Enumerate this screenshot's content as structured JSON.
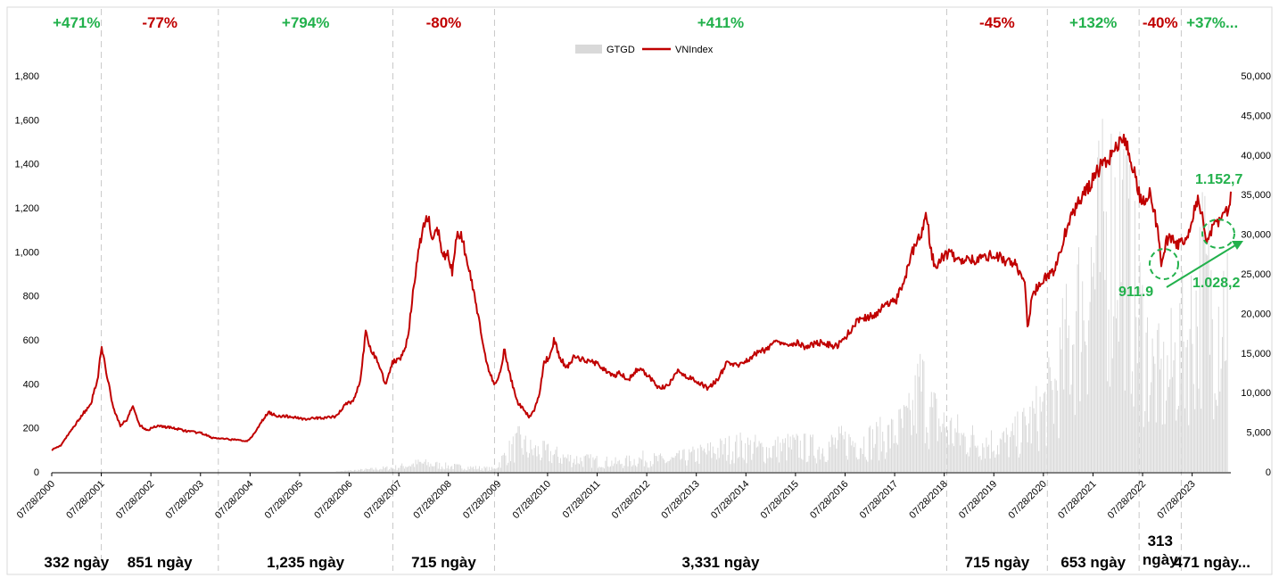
{
  "chart_data": {
    "type": "line",
    "series": [
      {
        "name": "GTGD",
        "kind": "bar",
        "color": "#d9d9d9",
        "axis": "right"
      },
      {
        "name": "VNIndex",
        "kind": "line",
        "color": "#c00000",
        "axis": "left"
      }
    ],
    "legend_position": "top-center",
    "grid": false,
    "left_axis": {
      "ticks": [
        "0",
        "200",
        "400",
        "600",
        "800",
        "1,000",
        "1,200",
        "1,400",
        "1,600",
        "1,800"
      ],
      "values": [
        0,
        200,
        400,
        600,
        800,
        1000,
        1200,
        1400,
        1600,
        1800
      ],
      "range": [
        0,
        1800
      ]
    },
    "right_axis": {
      "ticks": [
        "0",
        "5,000",
        "10,000",
        "15,000",
        "20,000",
        "25,000",
        "30,000",
        "35,000",
        "40,000",
        "45,000",
        "50,000"
      ],
      "values": [
        0,
        5000,
        10000,
        15000,
        20000,
        25000,
        30000,
        35000,
        40000,
        45000,
        50000
      ],
      "range": [
        0,
        50000
      ]
    },
    "x_range": [
      2000.57,
      2024.35
    ],
    "x_ticks": [
      {
        "label": "07/28/2000",
        "year": 2000.57
      },
      {
        "label": "07/28/2001",
        "year": 2001.57
      },
      {
        "label": "07/28/2002",
        "year": 2002.57
      },
      {
        "label": "07/28/2003",
        "year": 2003.57
      },
      {
        "label": "07/28/2004",
        "year": 2004.57
      },
      {
        "label": "07/28/2005",
        "year": 2005.57
      },
      {
        "label": "07/28/2006",
        "year": 2006.57
      },
      {
        "label": "07/28/2007",
        "year": 2007.57
      },
      {
        "label": "07/28/2008",
        "year": 2008.57
      },
      {
        "label": "07/28/2009",
        "year": 2009.57
      },
      {
        "label": "07/28/2010",
        "year": 2010.57
      },
      {
        "label": "07/28/2011",
        "year": 2011.57
      },
      {
        "label": "07/28/2012",
        "year": 2012.57
      },
      {
        "label": "07/28/2013",
        "year": 2013.57
      },
      {
        "label": "07/28/2014",
        "year": 2014.57
      },
      {
        "label": "07/28/2015",
        "year": 2015.57
      },
      {
        "label": "07/28/2016",
        "year": 2016.57
      },
      {
        "label": "07/28/2017",
        "year": 2017.57
      },
      {
        "label": "07/28/2018",
        "year": 2018.57
      },
      {
        "label": "07/28/2019",
        "year": 2019.57
      },
      {
        "label": "07/28/2020",
        "year": 2020.57
      },
      {
        "label": "07/28/2021",
        "year": 2021.57
      },
      {
        "label": "07/28/2022",
        "year": 2022.57
      },
      {
        "label": "07/28/2023",
        "year": 2023.57
      }
    ],
    "vnindex": [
      [
        2000.57,
        100
      ],
      [
        2000.75,
        120
      ],
      [
        2001.0,
        200
      ],
      [
        2001.2,
        265
      ],
      [
        2001.35,
        300
      ],
      [
        2001.5,
        430
      ],
      [
        2001.57,
        570
      ],
      [
        2001.65,
        480
      ],
      [
        2001.8,
        300
      ],
      [
        2001.95,
        210
      ],
      [
        2002.1,
        240
      ],
      [
        2002.2,
        300
      ],
      [
        2002.35,
        210
      ],
      [
        2002.5,
        190
      ],
      [
        2002.7,
        210
      ],
      [
        2003.0,
        200
      ],
      [
        2003.3,
        185
      ],
      [
        2003.6,
        175
      ],
      [
        2003.8,
        155
      ],
      [
        2004.0,
        150
      ],
      [
        2004.3,
        145
      ],
      [
        2004.5,
        140
      ],
      [
        2004.65,
        170
      ],
      [
        2004.85,
        245
      ],
      [
        2004.95,
        270
      ],
      [
        2005.1,
        255
      ],
      [
        2005.4,
        250
      ],
      [
        2005.7,
        240
      ],
      [
        2006.0,
        245
      ],
      [
        2006.3,
        250
      ],
      [
        2006.5,
        310
      ],
      [
        2006.65,
        320
      ],
      [
        2006.8,
        420
      ],
      [
        2006.9,
        630
      ],
      [
        2007.0,
        560
      ],
      [
        2007.15,
        500
      ],
      [
        2007.3,
        400
      ],
      [
        2007.45,
        500
      ],
      [
        2007.6,
        520
      ],
      [
        2007.75,
        600
      ],
      [
        2007.85,
        800
      ],
      [
        2007.95,
        980
      ],
      [
        2008.05,
        1100
      ],
      [
        2008.15,
        1170
      ],
      [
        2008.25,
        1050
      ],
      [
        2008.35,
        1110
      ],
      [
        2008.45,
        970
      ],
      [
        2008.55,
        1000
      ],
      [
        2008.65,
        900
      ],
      [
        2008.75,
        1100
      ],
      [
        2008.85,
        1060
      ],
      [
        2008.95,
        950
      ],
      [
        2009.1,
        800
      ],
      [
        2009.25,
        600
      ],
      [
        2009.35,
        480
      ],
      [
        2009.5,
        400
      ],
      [
        2009.6,
        440
      ],
      [
        2009.7,
        560
      ],
      [
        2009.8,
        450
      ],
      [
        2009.95,
        320
      ],
      [
        2010.1,
        280
      ],
      [
        2010.2,
        250
      ],
      [
        2010.3,
        280
      ],
      [
        2010.4,
        350
      ],
      [
        2010.5,
        500
      ],
      [
        2010.6,
        520
      ],
      [
        2010.7,
        600
      ],
      [
        2010.8,
        530
      ],
      [
        2010.95,
        470
      ],
      [
        2011.1,
        520
      ],
      [
        2011.3,
        510
      ],
      [
        2011.5,
        500
      ],
      [
        2011.7,
        470
      ],
      [
        2011.9,
        430
      ],
      [
        2012.0,
        450
      ],
      [
        2012.2,
        420
      ],
      [
        2012.4,
        470
      ],
      [
        2012.6,
        440
      ],
      [
        2012.8,
        380
      ],
      [
        2013.0,
        390
      ],
      [
        2013.2,
        460
      ],
      [
        2013.4,
        430
      ],
      [
        2013.6,
        410
      ],
      [
        2013.8,
        380
      ],
      [
        2014.0,
        420
      ],
      [
        2014.2,
        500
      ],
      [
        2014.4,
        480
      ],
      [
        2014.6,
        510
      ],
      [
        2014.8,
        540
      ],
      [
        2015.0,
        560
      ],
      [
        2015.2,
        600
      ],
      [
        2015.4,
        580
      ],
      [
        2015.6,
        590
      ],
      [
        2015.8,
        560
      ],
      [
        2016.0,
        590
      ],
      [
        2016.2,
        580
      ],
      [
        2016.4,
        570
      ],
      [
        2016.6,
        620
      ],
      [
        2016.8,
        680
      ],
      [
        2017.0,
        700
      ],
      [
        2017.2,
        720
      ],
      [
        2017.4,
        760
      ],
      [
        2017.6,
        780
      ],
      [
        2017.8,
        900
      ],
      [
        2018.0,
        1050
      ],
      [
        2018.15,
        1100
      ],
      [
        2018.2,
        1200
      ],
      [
        2018.3,
        1000
      ],
      [
        2018.4,
        930
      ],
      [
        2018.55,
        980
      ],
      [
        2018.7,
        1000
      ],
      [
        2018.85,
        950
      ],
      [
        2019.0,
        980
      ],
      [
        2019.2,
        960
      ],
      [
        2019.4,
        980
      ],
      [
        2019.6,
        990
      ],
      [
        2019.8,
        960
      ],
      [
        2020.0,
        950
      ],
      [
        2020.1,
        900
      ],
      [
        2020.2,
        860
      ],
      [
        2020.25,
        660
      ],
      [
        2020.35,
        800
      ],
      [
        2020.5,
        860
      ],
      [
        2020.6,
        880
      ],
      [
        2020.75,
        900
      ],
      [
        2020.9,
        1000
      ],
      [
        2021.1,
        1150
      ],
      [
        2021.3,
        1230
      ],
      [
        2021.5,
        1300
      ],
      [
        2021.7,
        1380
      ],
      [
        2021.85,
        1420
      ],
      [
        2022.0,
        1450
      ],
      [
        2022.1,
        1510
      ],
      [
        2022.2,
        1520
      ],
      [
        2022.3,
        1460
      ],
      [
        2022.45,
        1320
      ],
      [
        2022.55,
        1220
      ],
      [
        2022.7,
        1270
      ],
      [
        2022.8,
        1200
      ],
      [
        2022.9,
        1050
      ],
      [
        2022.95,
        935
      ],
      [
        2023.05,
        1050
      ],
      [
        2023.15,
        1070
      ],
      [
        2023.25,
        1030
      ],
      [
        2023.35,
        1050
      ],
      [
        2023.5,
        1080
      ],
      [
        2023.6,
        1180
      ],
      [
        2023.7,
        1240
      ],
      [
        2023.8,
        1130
      ],
      [
        2023.85,
        1030
      ],
      [
        2023.95,
        1100
      ],
      [
        2024.05,
        1130
      ],
      [
        2024.2,
        1170
      ],
      [
        2024.3,
        1200
      ],
      [
        2024.35,
        1250
      ]
    ],
    "gtgd": [
      [
        2006.3,
        50
      ],
      [
        2006.9,
        300
      ],
      [
        2007.5,
        600
      ],
      [
        2008.0,
        1200
      ],
      [
        2008.5,
        800
      ],
      [
        2009.0,
        600
      ],
      [
        2009.5,
        400
      ],
      [
        2009.75,
        2500
      ],
      [
        2010.0,
        4000
      ],
      [
        2010.2,
        3000
      ],
      [
        2010.6,
        2500
      ],
      [
        2011.0,
        1800
      ],
      [
        2011.5,
        1500
      ],
      [
        2012.0,
        1200
      ],
      [
        2012.5,
        1800
      ],
      [
        2013.0,
        1500
      ],
      [
        2013.5,
        2200
      ],
      [
        2014.0,
        3000
      ],
      [
        2014.5,
        3500
      ],
      [
        2015.0,
        3000
      ],
      [
        2015.5,
        3500
      ],
      [
        2016.0,
        3200
      ],
      [
        2016.5,
        4000
      ],
      [
        2017.0,
        4200
      ],
      [
        2017.5,
        5000
      ],
      [
        2017.9,
        7000
      ],
      [
        2018.1,
        12000
      ],
      [
        2018.3,
        8000
      ],
      [
        2018.6,
        6000
      ],
      [
        2019.0,
        4500
      ],
      [
        2019.5,
        4000
      ],
      [
        2019.9,
        4200
      ],
      [
        2020.2,
        6000
      ],
      [
        2020.5,
        8000
      ],
      [
        2020.8,
        11000
      ],
      [
        2021.0,
        16000
      ],
      [
        2021.3,
        22000
      ],
      [
        2021.6,
        28000
      ],
      [
        2021.9,
        32000
      ],
      [
        2022.15,
        36000
      ],
      [
        2022.35,
        25000
      ],
      [
        2022.6,
        18000
      ],
      [
        2022.8,
        13000
      ],
      [
        2023.0,
        12000
      ],
      [
        2023.3,
        16000
      ],
      [
        2023.6,
        20000
      ],
      [
        2023.8,
        26000
      ],
      [
        2024.0,
        22000
      ],
      [
        2024.3,
        24000
      ]
    ]
  },
  "legend": {
    "gtgd_label": "GTGD",
    "vnindex_label": "VNIndex"
  },
  "periods": [
    {
      "pct": "+471%",
      "days": "332 ngày",
      "direction": "up",
      "start": 2000.57,
      "end": 2001.57
    },
    {
      "pct": "-77%",
      "days": "851 ngày",
      "direction": "down",
      "start": 2001.57,
      "end": 2003.93
    },
    {
      "pct": "+794%",
      "days": "1,235 ngày",
      "direction": "up",
      "start": 2003.93,
      "end": 2007.45
    },
    {
      "pct": "-80%",
      "days": "715 ngày",
      "direction": "down",
      "start": 2007.45,
      "end": 2009.5
    },
    {
      "pct": "+411%",
      "days": "3,331 ngày",
      "direction": "up",
      "start": 2009.5,
      "end": 2018.62
    },
    {
      "pct": "-45%",
      "days": "715 ngày",
      "direction": "down",
      "start": 2018.62,
      "end": 2020.65
    },
    {
      "pct": "+132%",
      "days": "653 ngày",
      "direction": "up",
      "start": 2020.65,
      "end": 2022.5
    },
    {
      "pct": "-40%",
      "days": "313\nngày",
      "direction": "down",
      "start": 2022.5,
      "end": 2023.35
    },
    {
      "pct": "+37%...",
      "days": "471 ngày...",
      "direction": "up",
      "start": 2023.35,
      "end": 2024.6
    }
  ],
  "annotations": {
    "high_label": "1.152,7",
    "low1_label": "911.9",
    "low2_label": "1.028,2"
  }
}
